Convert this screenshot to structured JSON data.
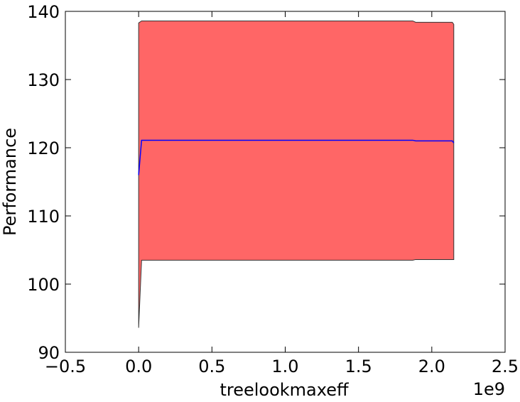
{
  "chart_data": {
    "type": "area",
    "title": "",
    "xlabel": "treelookmaxeff",
    "ylabel": "Performance",
    "x_offset_text": "1e9",
    "xlim": [
      -0.5,
      2.5
    ],
    "ylim": [
      90,
      140
    ],
    "x_ticks": [
      -0.5,
      0.0,
      0.5,
      1.0,
      1.5,
      2.0,
      2.5
    ],
    "x_tick_labels": [
      "−0.5",
      "0.0",
      "0.5",
      "1.0",
      "1.5",
      "2.0",
      "2.5"
    ],
    "y_ticks": [
      90,
      100,
      110,
      120,
      130,
      140
    ],
    "y_tick_labels": [
      "90",
      "100",
      "110",
      "120",
      "130",
      "140"
    ],
    "grid": false,
    "legend": "none",
    "x": [
      0.0,
      0.02,
      1.87,
      1.89,
      2.14,
      2.15
    ],
    "mean": [
      116.0,
      121.1,
      121.1,
      121.0,
      121.0,
      120.7
    ],
    "upper": [
      138.3,
      138.6,
      138.6,
      138.4,
      138.4,
      138.1
    ],
    "lower": [
      93.6,
      103.5,
      103.5,
      103.6,
      103.6,
      103.6
    ],
    "band_color": "#ff6666",
    "band_edge_color": "#333333",
    "line_color": "#0000ff"
  }
}
